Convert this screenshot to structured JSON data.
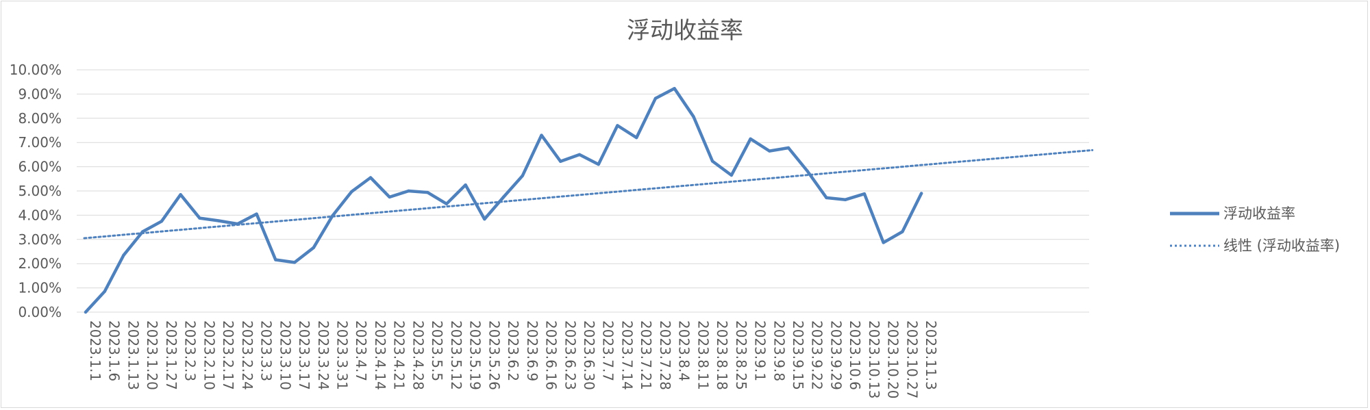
{
  "chart_data": {
    "type": "line",
    "title": "浮动收益率",
    "xlabel": "",
    "ylabel": "",
    "ylim": [
      0,
      0.1
    ],
    "y_ticks": [
      "0.00%",
      "1.00%",
      "2.00%",
      "3.00%",
      "4.00%",
      "5.00%",
      "6.00%",
      "7.00%",
      "8.00%",
      "9.00%",
      "10.00%"
    ],
    "grid": true,
    "legend_position": "right",
    "categories": [
      "2023.1.1",
      "2023.1.6",
      "2023.1.13",
      "2023.1.20",
      "2023.1.27",
      "2023.2.3",
      "2023.2.10",
      "2023.2.17",
      "2023.2.24",
      "2023.3.3",
      "2023.3.10",
      "2023.3.17",
      "2023.3.24",
      "2023.3.31",
      "2023.4.7",
      "2023.4.14",
      "2023.4.21",
      "2023.4.28",
      "2023.5.5",
      "2023.5.12",
      "2023.5.19",
      "2023.5.26",
      "2023.6.2",
      "2023.6.9",
      "2023.6.16",
      "2023.6.23",
      "2023.6.30",
      "2023.7.7",
      "2023.7.14",
      "2023.7.21",
      "2023.7.28",
      "2023.8.4",
      "2023.8.11",
      "2023.8.18",
      "2023.8.25",
      "2023.9.1",
      "2023.9.8",
      "2023.9.15",
      "2023.9.22",
      "2023.9.29",
      "2023.10.6",
      "2023.10.13",
      "2023.10.20",
      "2023.10.27",
      "2023.11.3"
    ],
    "series": [
      {
        "name": "浮动收益率",
        "color": "#4f81bd",
        "style": "solid",
        "values": [
          0.0,
          0.0085,
          0.0235,
          0.0332,
          0.0375,
          0.0485,
          0.0388,
          0.0377,
          0.0364,
          0.0405,
          0.0216,
          0.0205,
          0.0266,
          0.0398,
          0.0497,
          0.0555,
          0.0475,
          0.05,
          0.0494,
          0.0447,
          0.0525,
          0.0384,
          0.0475,
          0.0563,
          0.073,
          0.0622,
          0.065,
          0.061,
          0.077,
          0.072,
          0.0882,
          0.0923,
          0.0807,
          0.0623,
          0.0565,
          0.0715,
          0.0665,
          0.0678,
          0.0582,
          0.0472,
          0.0464,
          0.0488,
          0.0287,
          0.0332,
          0.049
        ]
      },
      {
        "name": "线性 (浮动收益率)",
        "color": "#4f81bd",
        "style": "dotted",
        "trendline": true,
        "start": 0.0305,
        "slope_per_period": 0.000686,
        "extend_periods": 53
      }
    ]
  }
}
